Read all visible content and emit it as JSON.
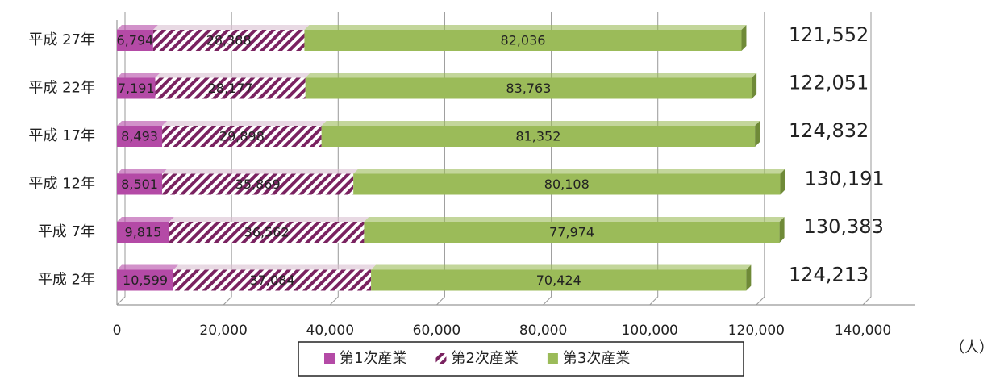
{
  "chart_data": {
    "type": "stacked-bar-horizontal",
    "categories": [
      "平成 27年",
      "平成 22年",
      "平成 17年",
      "平成 12年",
      "平成 7年",
      "平成 2年"
    ],
    "series": [
      {
        "name": "第1次産業",
        "color": "#b44aa6",
        "values": [
          6794,
          7191,
          8493,
          8501,
          9815,
          10599
        ],
        "value_labels": [
          "6,794",
          "7,191",
          "8,493",
          "8,501",
          "9,815",
          "10,599"
        ]
      },
      {
        "name": "第2次産業",
        "color": "#7a2260",
        "hatch": true,
        "values": [
          28388,
          28177,
          29898,
          35869,
          36562,
          37084
        ],
        "value_labels": [
          "28,388",
          "28,177",
          "29,898",
          "35,869",
          "36,562",
          "37,084"
        ]
      },
      {
        "name": "第3次産業",
        "color": "#9bbb59",
        "values": [
          82036,
          83763,
          81352,
          80108,
          77974,
          70424
        ],
        "value_labels": [
          "82,036",
          "83,763",
          "81,352",
          "80,108",
          "77,974",
          "70,424"
        ]
      }
    ],
    "totals": {
      "values": [
        121552,
        122051,
        124832,
        130191,
        130383,
        124213
      ],
      "value_labels": [
        "121,552",
        "122,051",
        "124,832",
        "130,191",
        "130,383",
        "124,213"
      ]
    },
    "xlim": [
      0,
      140000
    ],
    "xticks": [
      0,
      {
        "value": 20000,
        "label": "20,000"
      },
      {
        "value": 40000,
        "label": "40,000"
      },
      {
        "value": 60000,
        "label": "60,000"
      },
      {
        "value": 80000,
        "label": "80,000"
      },
      {
        "value": 100000,
        "label": "100,000"
      },
      {
        "value": 120000,
        "label": "120,000"
      },
      {
        "value": 140000,
        "label": "140,000"
      }
    ],
    "grid": true,
    "unit": "（人）"
  }
}
